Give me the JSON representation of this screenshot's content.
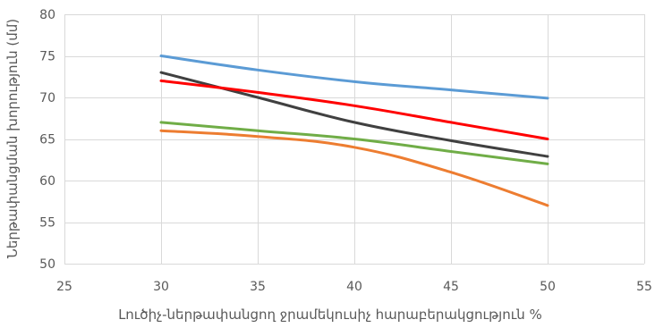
{
  "chart_data": {
    "type": "line",
    "title": "",
    "xlabel": "Լուծիչ-ներթափանցող ջրամեկուսիչ հարաբերակցություն %",
    "ylabel": "Ներթափանցման խորություն (մմ)",
    "xlim": [
      25,
      55
    ],
    "ylim": [
      50,
      80
    ],
    "x_ticks": [
      25,
      30,
      35,
      40,
      45,
      50,
      55
    ],
    "y_ticks": [
      50,
      55,
      60,
      65,
      70,
      75,
      80
    ],
    "grid": true,
    "legend": "none",
    "x": [
      30,
      35,
      40,
      45,
      50
    ],
    "series": [
      {
        "color": "#5b9bd5",
        "values": [
          75,
          73.3,
          71.9,
          70.9,
          69.9
        ]
      },
      {
        "color": "#404040",
        "values": [
          73,
          70,
          67,
          64.8,
          62.9
        ]
      },
      {
        "color": "#ff0000",
        "values": [
          72,
          70.6,
          69,
          67,
          65
        ]
      },
      {
        "color": "#70ad47",
        "values": [
          67,
          66,
          65,
          63.5,
          62
        ]
      },
      {
        "color": "#ed7d31",
        "values": [
          66,
          65.3,
          64,
          61,
          57
        ]
      }
    ]
  }
}
